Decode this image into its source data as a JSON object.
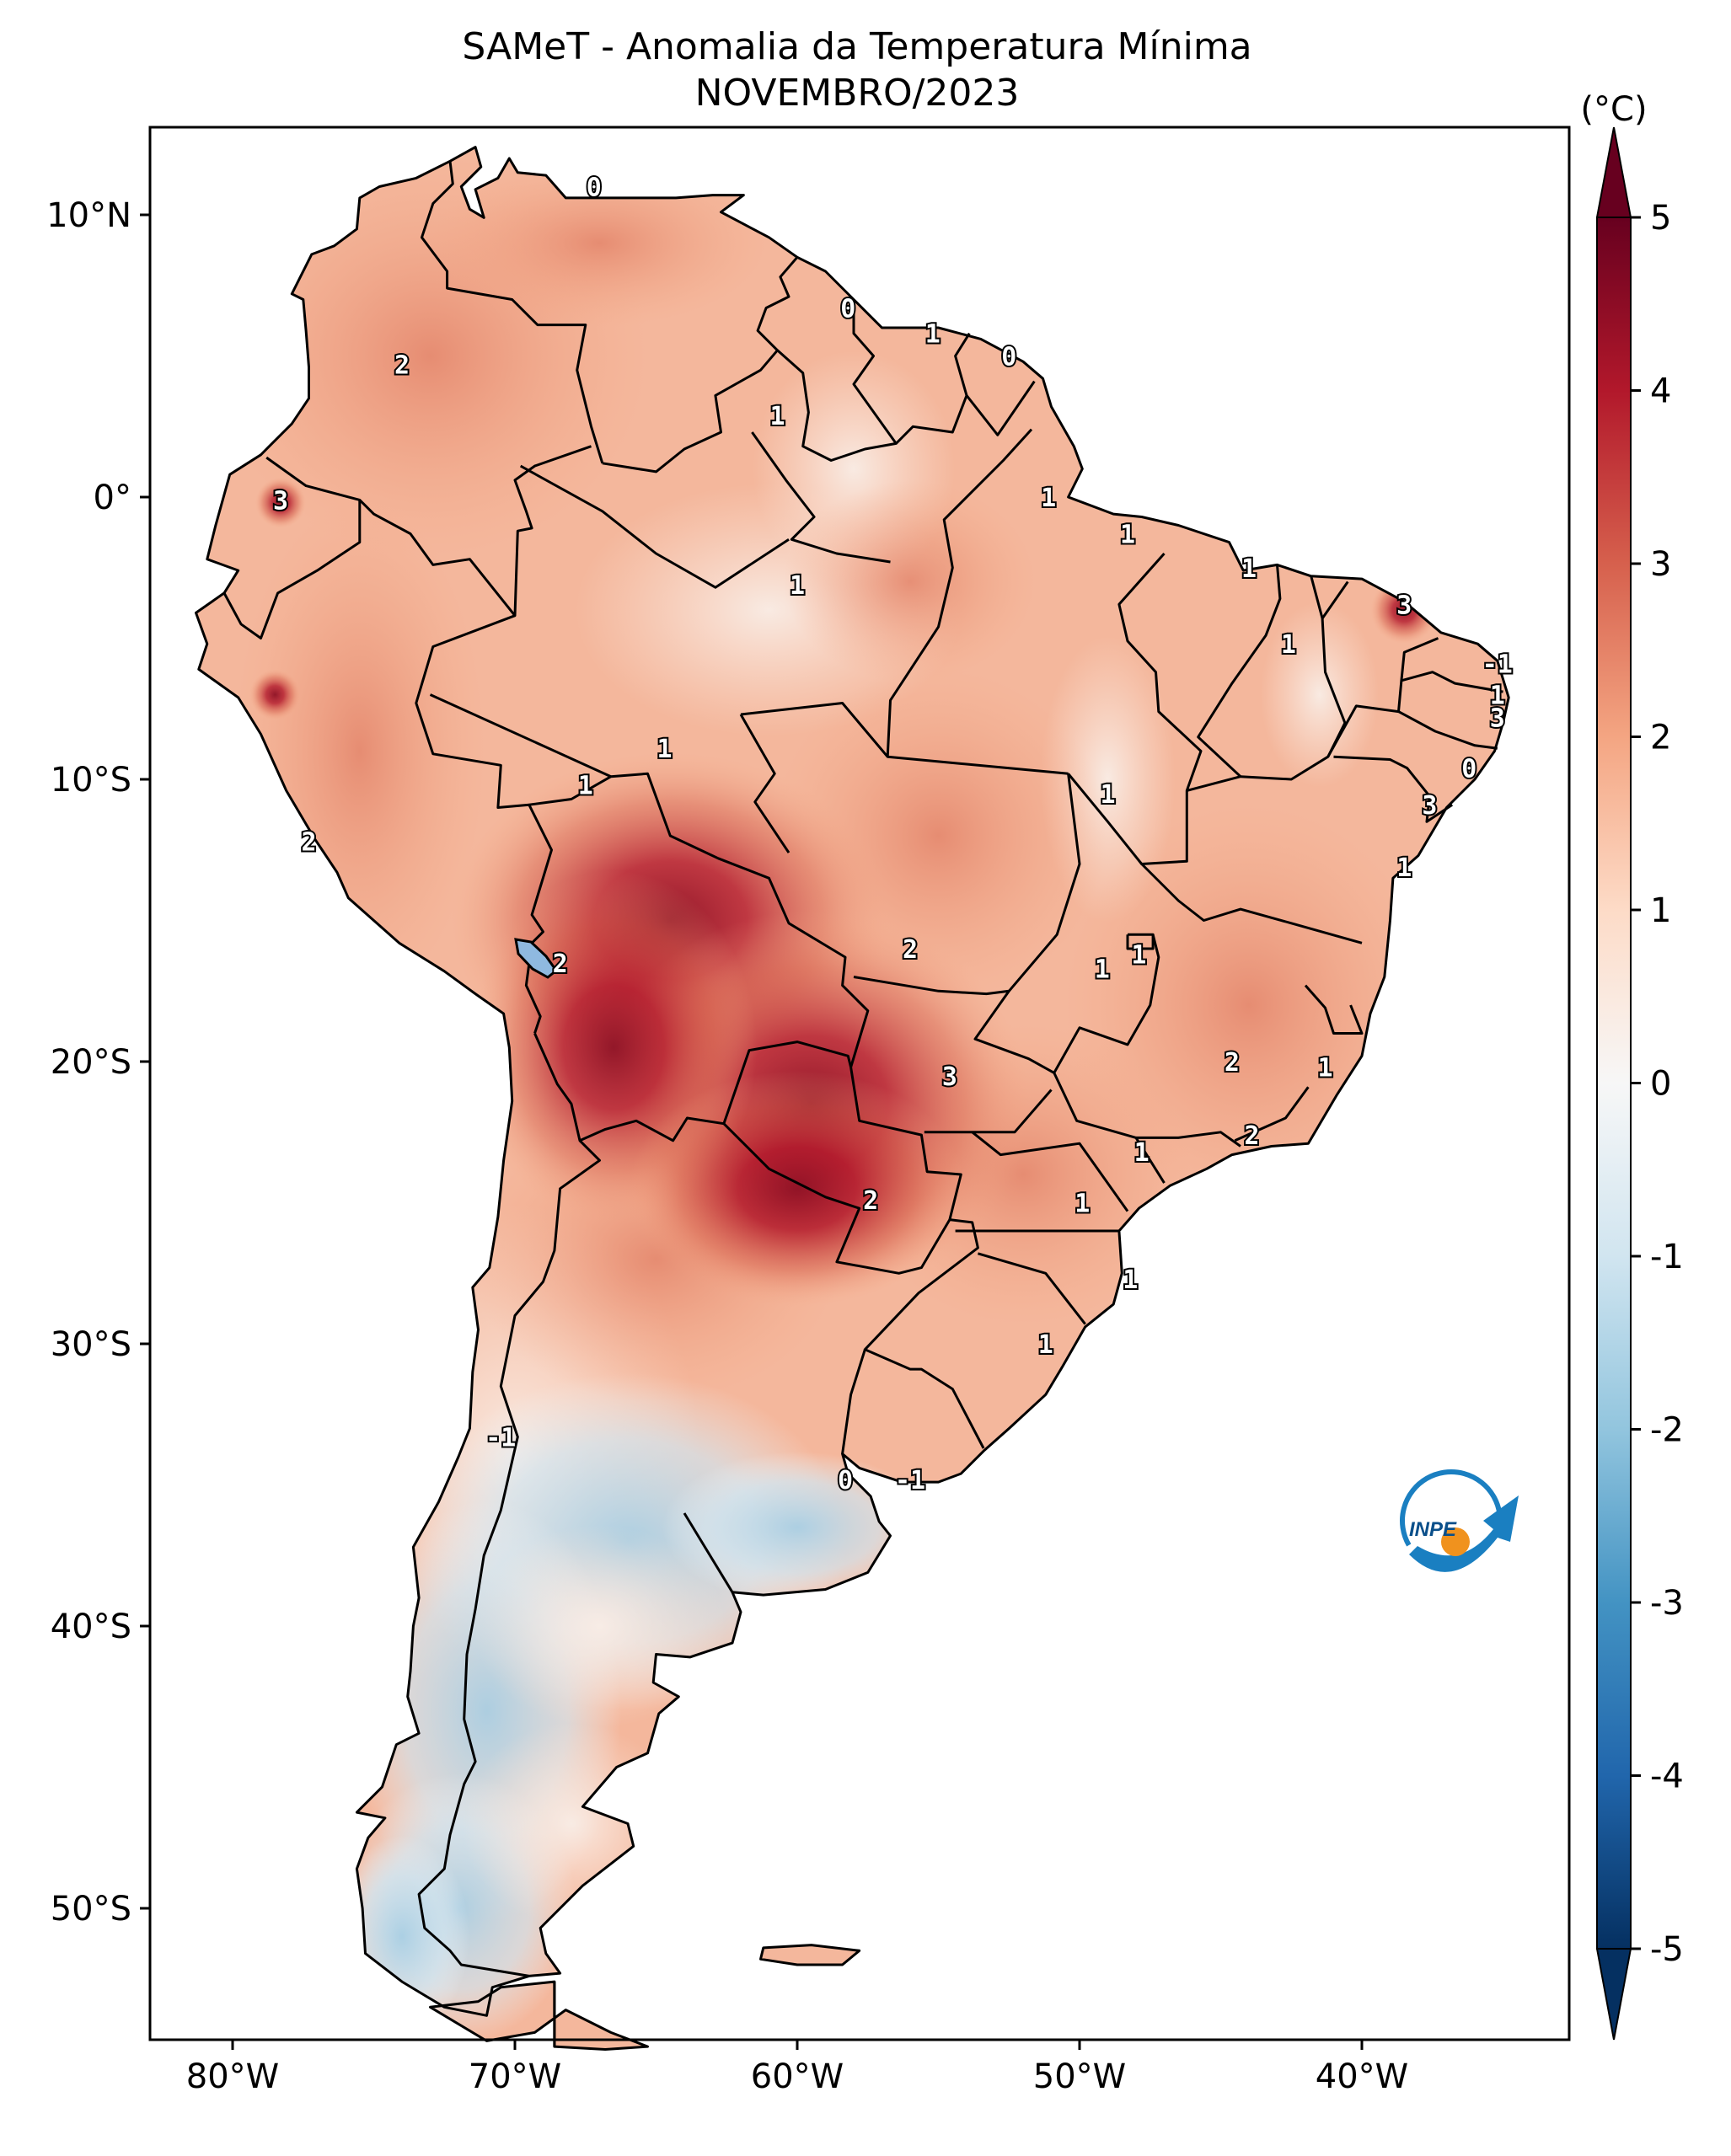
{
  "title": "SAMeT - Anomalia da Temperatura Mínima",
  "subtitle": "NOVEMBRO/2023",
  "colorbar": {
    "unit": "(°C)",
    "ticks": [
      "5",
      "4",
      "3",
      "2",
      "1",
      "0",
      "-1",
      "-2",
      "-3",
      "-4",
      "-5"
    ],
    "range": [
      -5,
      5
    ],
    "colormap": "RdBu_r",
    "colors": [
      "#053061",
      "#2166ac",
      "#4393c3",
      "#92c5de",
      "#d1e5f0",
      "#f7f7f7",
      "#fddbc7",
      "#f4a582",
      "#d6604d",
      "#b2182b",
      "#67001f"
    ]
  },
  "axes": {
    "lat_labels": [
      "10°N",
      "0°",
      "10°S",
      "20°S",
      "30°S",
      "40°S",
      "50°S"
    ],
    "lon_labels": [
      "80°W",
      "70°W",
      "60°W",
      "50°W",
      "40°W"
    ]
  },
  "contour_labels": [
    {
      "text": "0",
      "lon": -67.2,
      "lat": 11.0
    },
    {
      "text": "0",
      "lon": -58.2,
      "lat": 6.7
    },
    {
      "text": "1",
      "lon": -55.2,
      "lat": 5.8
    },
    {
      "text": "0",
      "lon": -52.5,
      "lat": 5.0
    },
    {
      "text": "2",
      "lon": -74.0,
      "lat": 4.7
    },
    {
      "text": "1",
      "lon": -60.7,
      "lat": 2.9
    },
    {
      "text": "3",
      "lon": -78.3,
      "lat": -0.1
    },
    {
      "text": "1",
      "lon": -51.1,
      "lat": 0.0
    },
    {
      "text": "1",
      "lon": -48.3,
      "lat": -1.3
    },
    {
      "text": "1",
      "lon": -44.0,
      "lat": -2.5
    },
    {
      "text": "1",
      "lon": -60.0,
      "lat": -3.1
    },
    {
      "text": "3",
      "lon": -38.5,
      "lat": -3.8
    },
    {
      "text": "1",
      "lon": -42.6,
      "lat": -5.2
    },
    {
      "text": "-1",
      "lon": -35.2,
      "lat": -5.9
    },
    {
      "text": "1",
      "lon": -35.2,
      "lat": -7.0
    },
    {
      "text": "3",
      "lon": -35.2,
      "lat": -7.8
    },
    {
      "text": "0",
      "lon": -36.2,
      "lat": -9.6
    },
    {
      "text": "1",
      "lon": -64.7,
      "lat": -8.9
    },
    {
      "text": "1",
      "lon": -67.5,
      "lat": -10.2
    },
    {
      "text": "1",
      "lon": -49.0,
      "lat": -10.5
    },
    {
      "text": "3",
      "lon": -37.6,
      "lat": -10.9
    },
    {
      "text": "2",
      "lon": -77.3,
      "lat": -12.2
    },
    {
      "text": "1",
      "lon": -38.5,
      "lat": -13.1
    },
    {
      "text": "2",
      "lon": -56.0,
      "lat": -16.0
    },
    {
      "text": "1",
      "lon": -47.9,
      "lat": -16.2
    },
    {
      "text": "2",
      "lon": -68.4,
      "lat": -16.5
    },
    {
      "text": "1",
      "lon": -49.2,
      "lat": -16.7
    },
    {
      "text": "3",
      "lon": -54.6,
      "lat": -20.5
    },
    {
      "text": "2",
      "lon": -44.6,
      "lat": -20.0
    },
    {
      "text": "1",
      "lon": -41.3,
      "lat": -20.2
    },
    {
      "text": "2",
      "lon": -43.9,
      "lat": -22.6
    },
    {
      "text": "1",
      "lon": -47.8,
      "lat": -23.2
    },
    {
      "text": "2",
      "lon": -57.4,
      "lat": -24.9
    },
    {
      "text": "1",
      "lon": -49.9,
      "lat": -25.0
    },
    {
      "text": "1",
      "lon": -48.2,
      "lat": -27.7
    },
    {
      "text": "1",
      "lon": -51.2,
      "lat": -30.0
    },
    {
      "text": "-1",
      "lon": -70.5,
      "lat": -33.3
    },
    {
      "text": "0",
      "lon": -58.3,
      "lat": -34.8
    },
    {
      "text": "-1",
      "lon": -56.0,
      "lat": -34.8
    }
  ],
  "logo": {
    "label": "INPE"
  }
}
